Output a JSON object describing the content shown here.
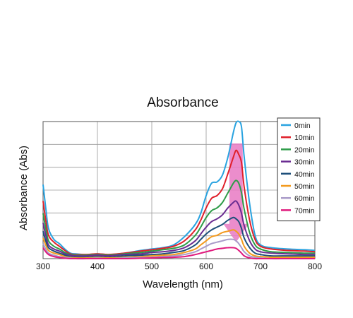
{
  "chart_data": {
    "type": "line",
    "title": "Absorbance",
    "xlabel": "Wavelength (nm)",
    "ylabel": "Absorbance (Abs)",
    "xlim": [
      300,
      800
    ],
    "ylim": [
      0,
      1
    ],
    "x_ticks": [
      "300",
      "400",
      "500",
      "600",
      "700",
      "800"
    ],
    "grid": true,
    "legend_position": "top-right",
    "annotation": {
      "type": "arrow-down",
      "x": 655,
      "y_top": 0.84,
      "y_bottom": 0.12,
      "color": "#e879c3"
    },
    "x": [
      300,
      305,
      310,
      320,
      330,
      340,
      350,
      360,
      380,
      400,
      420,
      450,
      480,
      500,
      520,
      540,
      560,
      580,
      590,
      600,
      610,
      620,
      630,
      640,
      650,
      655,
      660,
      665,
      670,
      680,
      690,
      700,
      720,
      750,
      780,
      800
    ],
    "series": [
      {
        "name": "0min",
        "color": "#29a3e0",
        "values": [
          0.54,
          0.37,
          0.22,
          0.14,
          0.11,
          0.07,
          0.04,
          0.035,
          0.03,
          0.035,
          0.03,
          0.04,
          0.06,
          0.07,
          0.08,
          0.1,
          0.16,
          0.25,
          0.33,
          0.46,
          0.55,
          0.56,
          0.61,
          0.74,
          0.92,
          0.99,
          1.0,
          0.96,
          0.74,
          0.4,
          0.17,
          0.1,
          0.08,
          0.07,
          0.065,
          0.06
        ]
      },
      {
        "name": "10min",
        "color": "#e0202a",
        "values": [
          0.42,
          0.28,
          0.17,
          0.12,
          0.09,
          0.06,
          0.035,
          0.03,
          0.03,
          0.035,
          0.03,
          0.04,
          0.055,
          0.065,
          0.075,
          0.09,
          0.13,
          0.21,
          0.28,
          0.37,
          0.44,
          0.46,
          0.51,
          0.62,
          0.74,
          0.79,
          0.76,
          0.7,
          0.52,
          0.28,
          0.14,
          0.09,
          0.07,
          0.06,
          0.055,
          0.05
        ]
      },
      {
        "name": "20min",
        "color": "#2e9c48",
        "values": [
          0.33,
          0.22,
          0.13,
          0.09,
          0.07,
          0.045,
          0.03,
          0.025,
          0.025,
          0.03,
          0.025,
          0.035,
          0.045,
          0.055,
          0.065,
          0.075,
          0.1,
          0.17,
          0.23,
          0.3,
          0.35,
          0.37,
          0.41,
          0.48,
          0.55,
          0.57,
          0.55,
          0.48,
          0.36,
          0.19,
          0.1,
          0.07,
          0.05,
          0.045,
          0.04,
          0.04
        ]
      },
      {
        "name": "30min",
        "color": "#6a2c91",
        "values": [
          0.26,
          0.17,
          0.1,
          0.07,
          0.055,
          0.035,
          0.025,
          0.02,
          0.02,
          0.025,
          0.02,
          0.03,
          0.035,
          0.045,
          0.05,
          0.06,
          0.08,
          0.13,
          0.18,
          0.23,
          0.27,
          0.29,
          0.32,
          0.37,
          0.41,
          0.42,
          0.39,
          0.33,
          0.24,
          0.13,
          0.07,
          0.05,
          0.04,
          0.035,
          0.03,
          0.03
        ]
      },
      {
        "name": "40min",
        "color": "#1d4f7a",
        "values": [
          0.2,
          0.13,
          0.08,
          0.055,
          0.04,
          0.025,
          0.015,
          0.01,
          0.01,
          0.015,
          0.01,
          0.02,
          0.025,
          0.03,
          0.035,
          0.045,
          0.06,
          0.1,
          0.14,
          0.18,
          0.21,
          0.23,
          0.25,
          0.28,
          0.3,
          0.29,
          0.27,
          0.22,
          0.15,
          0.08,
          0.04,
          0.03,
          0.02,
          0.02,
          0.02,
          0.02
        ]
      },
      {
        "name": "50min",
        "color": "#f39a1e",
        "values": [
          0.15,
          0.1,
          0.06,
          0.04,
          0.03,
          0.015,
          0.008,
          0.005,
          0.005,
          0.008,
          0.005,
          0.01,
          0.015,
          0.02,
          0.025,
          0.03,
          0.045,
          0.07,
          0.1,
          0.13,
          0.16,
          0.17,
          0.19,
          0.2,
          0.21,
          0.2,
          0.18,
          0.14,
          0.09,
          0.04,
          0.02,
          0.015,
          0.01,
          0.01,
          0.01,
          0.01
        ]
      },
      {
        "name": "60min",
        "color": "#a99bc9",
        "values": [
          0.11,
          0.07,
          0.04,
          0.025,
          0.015,
          0.008,
          0.004,
          0.0,
          0.0,
          0.004,
          0.0,
          0.005,
          0.008,
          0.01,
          0.015,
          0.02,
          0.03,
          0.05,
          0.07,
          0.09,
          0.11,
          0.12,
          0.13,
          0.14,
          0.14,
          0.13,
          0.11,
          0.08,
          0.05,
          0.02,
          0.01,
          0.005,
          0.0,
          0.0,
          0.0,
          0.0
        ]
      },
      {
        "name": "70min",
        "color": "#e0197d",
        "values": [
          0.08,
          0.05,
          0.03,
          0.015,
          0.008,
          0.003,
          0.0,
          0.0,
          0.0,
          0.0,
          0.0,
          0.0,
          0.003,
          0.005,
          0.008,
          0.01,
          0.015,
          0.03,
          0.04,
          0.05,
          0.06,
          0.07,
          0.075,
          0.08,
          0.08,
          0.075,
          0.06,
          0.04,
          0.02,
          0.005,
          0.0,
          0.0,
          0.0,
          0.0,
          0.0,
          0.0
        ]
      }
    ]
  }
}
